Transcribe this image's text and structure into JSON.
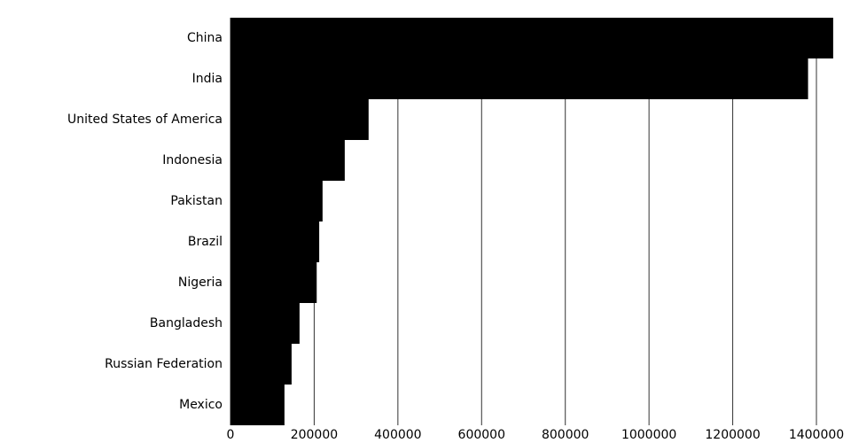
{
  "chart_data": {
    "type": "barh",
    "categories": [
      "China",
      "India",
      "United States of America",
      "Indonesia",
      "Pakistan",
      "Brazil",
      "Nigeria",
      "Bangladesh",
      "Russian Federation",
      "Mexico"
    ],
    "values": [
      1440000,
      1380000,
      330000,
      273000,
      220000,
      212000,
      206000,
      165000,
      146000,
      129000
    ],
    "color": "#000000",
    "xlim": [
      0,
      1400000
    ],
    "xticks": [
      0,
      200000,
      400000,
      600000,
      800000,
      1000000,
      1200000,
      1400000
    ],
    "grid": true
  }
}
